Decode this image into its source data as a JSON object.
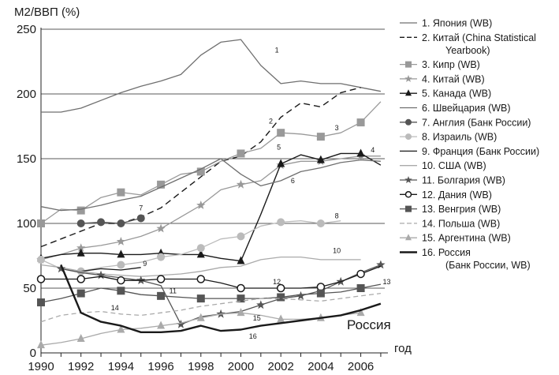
{
  "chart_data": {
    "type": "line",
    "ylabel": "М2/ВВП (%)",
    "xlabel": "год",
    "ylim": [
      0,
      250
    ],
    "xlim": [
      1990,
      2007.2
    ],
    "yticks": [
      0,
      50,
      100,
      150,
      200,
      250
    ],
    "xticks": [
      1990,
      1992,
      1994,
      1996,
      1998,
      2000,
      2002,
      2004,
      2006
    ],
    "grid": "horizontal",
    "legend_position": "right",
    "annotation": "Россия",
    "series": [
      {
        "id": "1",
        "name": "1. Япония (WB)",
        "color": "#6f6f6f",
        "dash": "",
        "width": 1.3,
        "marker": "none",
        "x": [
          1990,
          1991,
          1992,
          1993,
          1994,
          1995,
          1996,
          1997,
          1998,
          1999,
          2000,
          2001,
          2002,
          2003,
          2004,
          2005,
          2006,
          2007
        ],
        "y": [
          186,
          186,
          189,
          195,
          201,
          206,
          210,
          215,
          230,
          240,
          242,
          222,
          208,
          210,
          208,
          208,
          205,
          202
        ]
      },
      {
        "id": "2",
        "name": "2. Китай (China Statistical Yearbook)",
        "color": "#1a1a1a",
        "dash": "8,5",
        "width": 1.4,
        "marker": "none",
        "x": [
          1990,
          1991,
          1992,
          1993,
          1994,
          1995,
          1996,
          1997,
          1998,
          1999,
          2000,
          2001,
          2002,
          2003,
          2004,
          2005,
          2006
        ],
        "y": [
          82,
          88,
          94,
          100,
          100,
          105,
          112,
          124,
          136,
          148,
          152,
          163,
          182,
          193,
          190,
          201,
          205
        ]
      },
      {
        "id": "3",
        "name": "3. Кипр (WB)",
        "color": "#999999",
        "dash": "",
        "width": 1.3,
        "marker": "square",
        "x": [
          1990,
          1991,
          1992,
          1993,
          1994,
          1995,
          1996,
          1997,
          1998,
          1999,
          2000,
          2001,
          2002,
          2003,
          2004,
          2005,
          2006,
          2007
        ],
        "y": [
          100,
          111,
          110,
          120,
          124,
          122,
          130,
          138,
          140,
          148,
          154,
          158,
          170,
          169,
          167,
          170,
          178,
          194
        ]
      },
      {
        "id": "4",
        "name": "4. Китай (WB)",
        "color": "#999999",
        "dash": "",
        "width": 1.3,
        "marker": "star",
        "x": [
          1990,
          1991,
          1992,
          1993,
          1994,
          1995,
          1996,
          1997,
          1998,
          1999,
          2000,
          2001,
          2002,
          2003,
          2004,
          2005,
          2006,
          2007
        ],
        "y": [
          72,
          76,
          81,
          83,
          86,
          90,
          96,
          105,
          114,
          126,
          130,
          133,
          145,
          148,
          148,
          150,
          152,
          152
        ]
      },
      {
        "id": "5",
        "name": "5. Канада (WB)",
        "color": "#1a1a1a",
        "dash": "",
        "width": 1.4,
        "marker": "triangle",
        "x": [
          1990,
          1991,
          1992,
          1993,
          1994,
          1995,
          1996,
          1997,
          1998,
          1999,
          2000,
          2001,
          2002,
          2003,
          2004,
          2005,
          2006,
          2007
        ],
        "y": [
          73,
          76,
          77,
          77,
          76,
          76,
          77,
          76,
          76,
          73,
          71,
          107,
          146,
          153,
          149,
          154,
          154,
          145
        ]
      },
      {
        "id": "6",
        "name": "6. Швейцария (WB)",
        "color": "#6f6f6f",
        "dash": "",
        "width": 1.3,
        "marker": "none",
        "x": [
          1990,
          1991,
          1992,
          1993,
          1994,
          1995,
          1996,
          1997,
          1998,
          1999,
          2000,
          2001,
          2002,
          2003,
          2004,
          2005,
          2006,
          2007
        ],
        "y": [
          113,
          110,
          111,
          114,
          118,
          121,
          128,
          135,
          142,
          150,
          138,
          129,
          133,
          140,
          143,
          147,
          149,
          148
        ]
      },
      {
        "id": "7",
        "name": "7. Англия (Банк России)",
        "color": "#555555",
        "dash": "",
        "width": 1.3,
        "marker": "circle",
        "x": [
          1992,
          1993,
          1994,
          1995
        ],
        "y": [
          100,
          101,
          100,
          104
        ]
      },
      {
        "id": "8",
        "name": "8. Израиль (WB)",
        "color": "#bbbbbb",
        "dash": "",
        "width": 1.3,
        "marker": "circle",
        "x": [
          1990,
          1991,
          1992,
          1993,
          1994,
          1995,
          1996,
          1997,
          1998,
          1999,
          2000,
          2001,
          2002,
          2003,
          2004,
          2005
        ],
        "y": [
          72,
          65,
          63,
          66,
          68,
          70,
          74,
          76,
          81,
          88,
          90,
          98,
          101,
          102,
          100,
          102
        ]
      },
      {
        "id": "9",
        "name": "9. Франция (Банк России)",
        "color": "#1a1a1a",
        "dash": "",
        "width": 1.3,
        "marker": "none",
        "x": [
          1992,
          1993,
          1994,
          1995
        ],
        "y": [
          63,
          65,
          64,
          66
        ]
      },
      {
        "id": "10",
        "name": "10. США (WB)",
        "color": "#aaaaaa",
        "dash": "",
        "width": 1.3,
        "marker": "none",
        "x": [
          1990,
          1991,
          1992,
          1993,
          1994,
          1995,
          1996,
          1997,
          1998,
          1999,
          2000,
          2001,
          2002,
          2003,
          2004,
          2005,
          2006
        ],
        "y": [
          68,
          66,
          63,
          61,
          60,
          59,
          60,
          61,
          63,
          66,
          67,
          72,
          74,
          74,
          72,
          72,
          72
        ]
      },
      {
        "id": "11",
        "name": "11. Болгария (WB)",
        "color": "#555555",
        "dash": "",
        "width": 1.3,
        "marker": "star",
        "x": [
          1991,
          1992,
          1993,
          1994,
          1995,
          1996,
          1997,
          1998,
          1999,
          2000,
          2001,
          2002,
          2003,
          2004,
          2005,
          2006,
          2007
        ],
        "y": [
          65,
          62,
          60,
          58,
          56,
          52,
          22,
          28,
          30,
          32,
          37,
          42,
          44,
          48,
          55,
          62,
          68
        ]
      },
      {
        "id": "12",
        "name": "12. Дания (WB)",
        "color": "#1a1a1a",
        "dash": "",
        "width": 1.3,
        "marker": "circle-open",
        "x": [
          1990,
          1991,
          1992,
          1993,
          1994,
          1995,
          1996,
          1997,
          1998,
          1999,
          2000,
          2001,
          2002,
          2003,
          2004,
          2005,
          2006,
          2007
        ],
        "y": [
          57,
          57,
          57,
          59,
          56,
          56,
          57,
          57,
          57,
          54,
          50,
          50,
          50,
          50,
          51,
          55,
          61,
          67
        ]
      },
      {
        "id": "13",
        "name": "13. Венгрия (WB)",
        "color": "#555555",
        "dash": "",
        "width": 1.3,
        "marker": "square",
        "x": [
          1990,
          1991,
          1992,
          1993,
          1994,
          1995,
          1996,
          1997,
          1998,
          1999,
          2000,
          2001,
          2002,
          2003,
          2004,
          2005,
          2006,
          2007
        ],
        "y": [
          39,
          42,
          46,
          50,
          48,
          45,
          44,
          43,
          42,
          42,
          42,
          42,
          43,
          45,
          46,
          47,
          50,
          53
        ]
      },
      {
        "id": "14",
        "name": "14. Польша (WB)",
        "color": "#aaaaaa",
        "dash": "6,4",
        "width": 1.3,
        "marker": "none",
        "x": [
          1990,
          1991,
          1992,
          1993,
          1994,
          1995,
          1996,
          1997,
          1998,
          1999,
          2000,
          2001,
          2002,
          2003,
          2004,
          2005,
          2006,
          2007
        ],
        "y": [
          24,
          29,
          31,
          32,
          30,
          29,
          31,
          33,
          36,
          38,
          40,
          42,
          42,
          41,
          40,
          42,
          44,
          46
        ]
      },
      {
        "id": "15",
        "name": "15. Аргентина (WB)",
        "color": "#aaaaaa",
        "dash": "",
        "width": 1.3,
        "marker": "triangle",
        "x": [
          1990,
          1991,
          1992,
          1993,
          1994,
          1995,
          1996,
          1997,
          1998,
          1999,
          2000,
          2001,
          2002,
          2003,
          2004,
          2005,
          2006
        ],
        "y": [
          6,
          8,
          11,
          15,
          18,
          19,
          21,
          23,
          27,
          30,
          31,
          29,
          26,
          26,
          27,
          29,
          31
        ]
      },
      {
        "id": "16",
        "name": "16. Россия (Банк России, WB)",
        "color": "#1a1a1a",
        "dash": "",
        "width": 2.4,
        "marker": "none",
        "x": [
          1991,
          1992,
          1993,
          1994,
          1995,
          1996,
          1997,
          1998,
          1999,
          2000,
          2001,
          2002,
          2003,
          2004,
          2005,
          2006,
          2007
        ],
        "y": [
          68,
          31,
          24,
          21,
          16,
          16,
          17,
          21,
          17,
          18,
          21,
          23,
          25,
          27,
          29,
          33,
          38
        ]
      }
    ]
  }
}
